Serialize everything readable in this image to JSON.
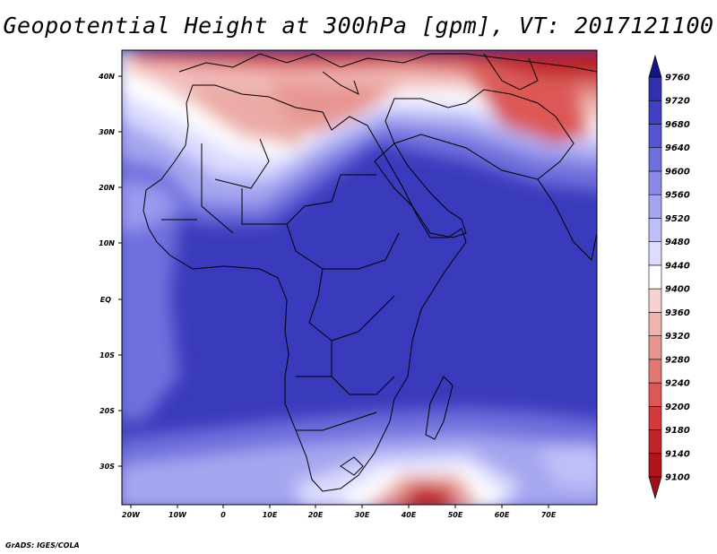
{
  "title": "Geopotential Height at 300hPa [gpm], VT: 2017121100",
  "credit": "GrADS: IGES/COLA",
  "map": {
    "lat_labels": [
      "40N",
      "30N",
      "20N",
      "10N",
      "EQ",
      "10S",
      "20S",
      "30S"
    ],
    "lon_labels": [
      "20W",
      "10W",
      "0",
      "10E",
      "20E",
      "30E",
      "40E",
      "50E",
      "60E",
      "70E"
    ]
  },
  "colorbar": {
    "labels": [
      "9100",
      "9140",
      "9180",
      "9200",
      "9240",
      "9280",
      "9320",
      "9360",
      "9400",
      "9440",
      "9480",
      "9520",
      "9560",
      "9600",
      "9640",
      "9680",
      "9720",
      "9760"
    ],
    "colors": [
      "#b0151b",
      "#c02428",
      "#d13b3c",
      "#db5856",
      "#e27874",
      "#e89692",
      "#efb3b0",
      "#f6d2d0",
      "#ffffff",
      "#dcdcff",
      "#c0c0f8",
      "#a6a6f0",
      "#8a8ae8",
      "#6f6fdd",
      "#5555d2",
      "#4040c4",
      "#3030b0",
      "#22229a"
    ],
    "under_color": "#9a1216",
    "over_color": "#161682"
  }
}
